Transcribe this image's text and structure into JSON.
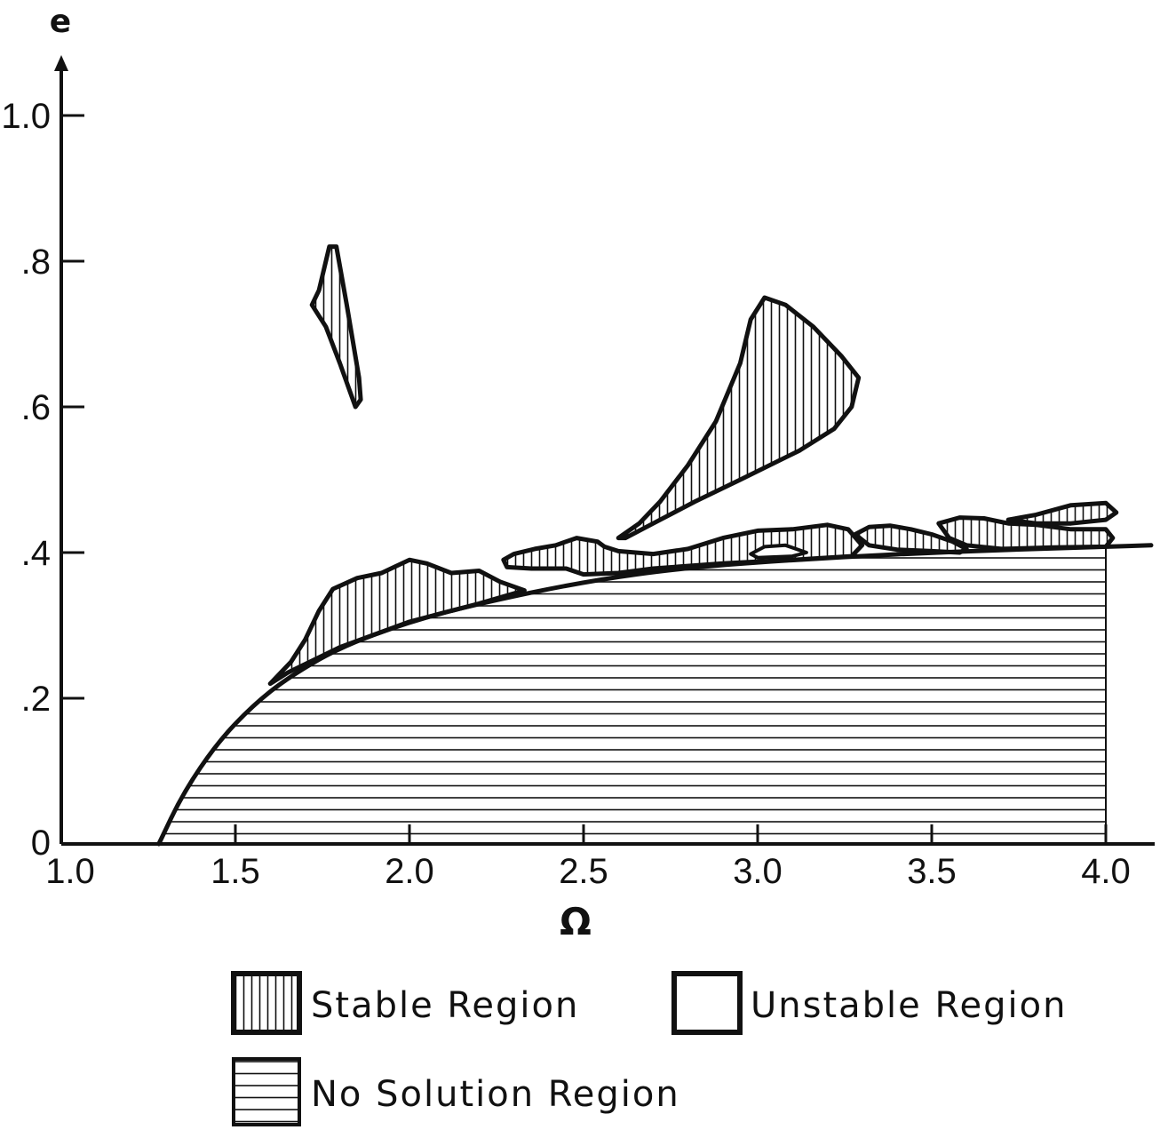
{
  "chart_data": {
    "type": "area",
    "title": "",
    "xlabel": "Ω",
    "ylabel": "e",
    "xlim": [
      1.0,
      4.2
    ],
    "ylim": [
      0,
      1.1
    ],
    "x_ticks": [
      {
        "value": 1.0,
        "label": "1.0"
      },
      {
        "value": 1.5,
        "label": "1.5"
      },
      {
        "value": 2.0,
        "label": "2.0"
      },
      {
        "value": 2.5,
        "label": "2.5"
      },
      {
        "value": 3.0,
        "label": "3.0"
      },
      {
        "value": 3.5,
        "label": "3.5"
      },
      {
        "value": 4.0,
        "label": "4.0"
      }
    ],
    "y_ticks": [
      {
        "value": 0,
        "label": "0"
      },
      {
        "value": 0.2,
        "label": ".2"
      },
      {
        "value": 0.4,
        "label": ".4"
      },
      {
        "value": 0.6,
        "label": ".6"
      },
      {
        "value": 0.8,
        "label": ".8"
      },
      {
        "value": 1.0,
        "label": "1.0"
      }
    ],
    "grid": false,
    "legend_position": "bottom",
    "colors": {
      "ink": "#111111",
      "background": "#ffffff"
    },
    "boundary_curve": {
      "x": [
        1.28,
        1.35,
        1.45,
        1.55,
        1.65,
        1.8,
        2.0,
        2.2,
        2.5,
        2.8,
        3.2,
        3.6,
        4.0,
        4.13
      ],
      "y": [
        0.0,
        0.07,
        0.14,
        0.19,
        0.228,
        0.27,
        0.305,
        0.33,
        0.36,
        0.38,
        0.393,
        0.402,
        0.408,
        0.41
      ]
    },
    "no_solution_region": {
      "description_boundary": "below boundary_curve",
      "x_range": [
        1.28,
        4.0
      ],
      "hatch": "horizontal"
    },
    "stable_regions": [
      {
        "hatch": "vertical",
        "x": [
          1.74,
          1.77,
          1.79,
          1.82,
          1.855,
          1.86,
          1.845,
          1.8,
          1.76,
          1.72,
          1.74
        ],
        "y": [
          0.76,
          0.82,
          0.82,
          0.74,
          0.64,
          0.61,
          0.6,
          0.66,
          0.71,
          0.74,
          0.76
        ]
      },
      {
        "hatch": "vertical",
        "x": [
          2.6,
          2.66,
          2.72,
          2.8,
          2.88,
          2.95,
          2.98,
          3.02,
          3.08,
          3.16,
          3.24,
          3.29,
          3.27,
          3.22,
          3.12,
          2.95,
          2.82,
          2.7,
          2.62,
          2.6
        ],
        "y": [
          0.42,
          0.44,
          0.47,
          0.52,
          0.58,
          0.66,
          0.72,
          0.75,
          0.74,
          0.71,
          0.67,
          0.64,
          0.6,
          0.57,
          0.54,
          0.5,
          0.47,
          0.44,
          0.42,
          0.42
        ]
      },
      {
        "hatch": "vertical",
        "x": [
          1.6,
          1.66,
          1.7,
          1.74,
          1.78,
          1.85,
          1.92,
          2.0,
          2.05,
          2.12,
          2.2,
          2.26,
          2.33,
          2.2,
          2.0,
          1.8,
          1.65,
          1.6
        ],
        "y": [
          0.22,
          0.25,
          0.28,
          0.32,
          0.35,
          0.365,
          0.372,
          0.39,
          0.385,
          0.372,
          0.375,
          0.36,
          0.348,
          0.33,
          0.305,
          0.27,
          0.235,
          0.22
        ]
      },
      {
        "hatch": "vertical",
        "x": [
          2.27,
          2.3,
          2.36,
          2.42,
          2.48,
          2.54,
          2.56,
          2.6,
          2.7,
          2.8,
          2.9,
          3.0,
          3.1,
          3.2,
          3.26,
          3.3,
          3.27,
          3.1,
          2.9,
          2.7,
          2.6,
          2.5,
          2.45,
          2.35,
          2.28,
          2.27
        ],
        "y": [
          0.39,
          0.398,
          0.405,
          0.41,
          0.42,
          0.415,
          0.408,
          0.402,
          0.398,
          0.405,
          0.42,
          0.43,
          0.432,
          0.438,
          0.432,
          0.41,
          0.395,
          0.39,
          0.385,
          0.378,
          0.372,
          0.37,
          0.378,
          0.378,
          0.38,
          0.39
        ]
      },
      {
        "hatch": "vertical",
        "x": [
          3.28,
          3.32,
          3.38,
          3.44,
          3.5,
          3.56,
          3.6,
          3.58,
          3.5,
          3.4,
          3.32,
          3.28
        ],
        "y": [
          0.425,
          0.435,
          0.437,
          0.432,
          0.425,
          0.415,
          0.405,
          0.4,
          0.402,
          0.404,
          0.41,
          0.425
        ]
      },
      {
        "hatch": "vertical",
        "x": [
          3.52,
          3.58,
          3.65,
          3.72,
          3.8,
          3.9,
          4.0,
          4.02,
          4.0,
          3.85,
          3.7,
          3.6,
          3.55,
          3.52
        ],
        "y": [
          0.44,
          0.448,
          0.447,
          0.44,
          0.438,
          0.432,
          0.432,
          0.42,
          0.408,
          0.407,
          0.405,
          0.41,
          0.42,
          0.44
        ]
      },
      {
        "hatch": "vertical",
        "x": [
          3.72,
          3.8,
          3.9,
          4.0,
          4.03,
          4.0,
          3.9,
          3.8,
          3.72
        ],
        "y": [
          0.445,
          0.452,
          0.465,
          0.468,
          0.455,
          0.445,
          0.44,
          0.44,
          0.445
        ]
      }
    ],
    "unstable_pockets": [
      {
        "x": [
          2.98,
          3.02,
          3.08,
          3.14,
          3.1,
          3.0,
          2.98
        ],
        "y": [
          0.398,
          0.408,
          0.41,
          0.4,
          0.395,
          0.393,
          0.398
        ]
      }
    ],
    "legend": {
      "stable": "Stable Region",
      "unstable": "Unstable Region",
      "no_solution": "No Solution Region"
    }
  }
}
